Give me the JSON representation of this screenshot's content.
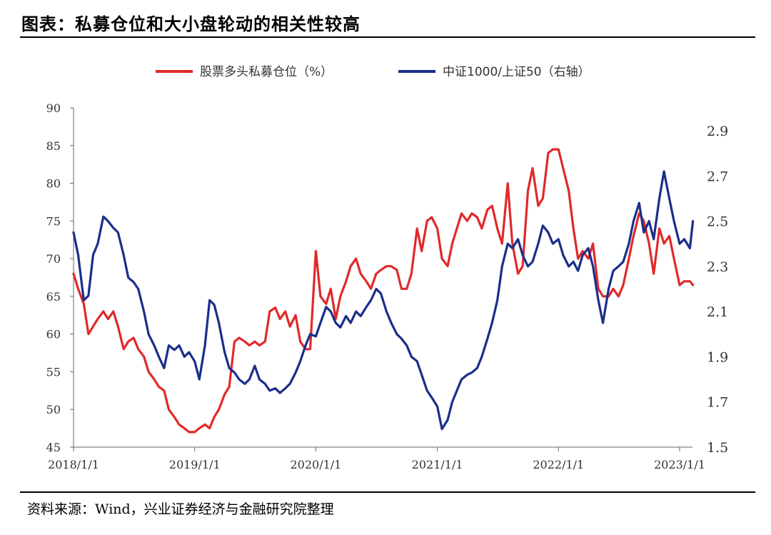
{
  "title": "图表：私募仓位和大小盘轮动的相关性较高",
  "source": "资料来源：Wind，兴业证券经济与金融研究院整理",
  "colors": {
    "red": "#e0292b",
    "blue": "#1a2e8a",
    "axis": "#666666"
  },
  "chart_data": {
    "type": "line",
    "legend_position": "top-center",
    "grid": false,
    "x_ticks": [
      "2018/1/1",
      "2019/1/1",
      "2020/1/1",
      "2021/1/1",
      "2022/1/1",
      "2023/1/1"
    ],
    "x_range": [
      "2018/1/1",
      "2023/2/10"
    ],
    "y_left": {
      "range": [
        45,
        90
      ],
      "ticks": [
        45,
        50,
        55,
        60,
        65,
        70,
        75,
        80,
        85,
        90
      ]
    },
    "y_right": {
      "range": [
        1.5,
        3.0
      ],
      "ticks": [
        1.5,
        1.7,
        1.9,
        2.1,
        2.3,
        2.5,
        2.7,
        2.9
      ]
    },
    "series": [
      {
        "name": "股票多头私募仓位（%）",
        "axis": "left",
        "color": "#e0292b",
        "points": [
          [
            "2018/1/1",
            68
          ],
          [
            "2018/1/15",
            66
          ],
          [
            "2018/2/1",
            64
          ],
          [
            "2018/2/15",
            60
          ],
          [
            "2018/3/1",
            61
          ],
          [
            "2018/3/15",
            62
          ],
          [
            "2018/4/1",
            63
          ],
          [
            "2018/4/15",
            62
          ],
          [
            "2018/5/1",
            63
          ],
          [
            "2018/5/15",
            61
          ],
          [
            "2018/6/1",
            58
          ],
          [
            "2018/6/15",
            59
          ],
          [
            "2018/7/1",
            59.5
          ],
          [
            "2018/7/15",
            58
          ],
          [
            "2018/8/1",
            57
          ],
          [
            "2018/8/15",
            55
          ],
          [
            "2018/9/1",
            54
          ],
          [
            "2018/9/15",
            53
          ],
          [
            "2018/10/1",
            52.5
          ],
          [
            "2018/10/15",
            50
          ],
          [
            "2018/11/1",
            49
          ],
          [
            "2018/11/15",
            48
          ],
          [
            "2018/12/1",
            47.5
          ],
          [
            "2018/12/15",
            47
          ],
          [
            "2019/1/1",
            47
          ],
          [
            "2019/1/15",
            47.5
          ],
          [
            "2019/2/1",
            48
          ],
          [
            "2019/2/15",
            47.5
          ],
          [
            "2019/3/1",
            49
          ],
          [
            "2019/3/15",
            50
          ],
          [
            "2019/4/1",
            52
          ],
          [
            "2019/4/15",
            53
          ],
          [
            "2019/5/1",
            59
          ],
          [
            "2019/5/15",
            59.5
          ],
          [
            "2019/6/1",
            59
          ],
          [
            "2019/6/15",
            58.5
          ],
          [
            "2019/7/1",
            59
          ],
          [
            "2019/7/15",
            58.5
          ],
          [
            "2019/8/1",
            59
          ],
          [
            "2019/8/15",
            63
          ],
          [
            "2019/9/1",
            63.5
          ],
          [
            "2019/9/15",
            62
          ],
          [
            "2019/10/1",
            63
          ],
          [
            "2019/10/15",
            61
          ],
          [
            "2019/11/1",
            62.5
          ],
          [
            "2019/11/15",
            59
          ],
          [
            "2019/12/1",
            58
          ],
          [
            "2019/12/15",
            58
          ],
          [
            "2020/1/1",
            71
          ],
          [
            "2020/1/15",
            65
          ],
          [
            "2020/2/1",
            64
          ],
          [
            "2020/2/15",
            66
          ],
          [
            "2020/3/1",
            62
          ],
          [
            "2020/3/15",
            65
          ],
          [
            "2020/4/1",
            67
          ],
          [
            "2020/4/15",
            69
          ],
          [
            "2020/5/1",
            70
          ],
          [
            "2020/5/15",
            68
          ],
          [
            "2020/6/1",
            67
          ],
          [
            "2020/6/15",
            66
          ],
          [
            "2020/7/1",
            68
          ],
          [
            "2020/7/15",
            68.5
          ],
          [
            "2020/8/1",
            69
          ],
          [
            "2020/8/15",
            69
          ],
          [
            "2020/9/1",
            68.5
          ],
          [
            "2020/9/15",
            66
          ],
          [
            "2020/10/1",
            66
          ],
          [
            "2020/10/15",
            68
          ],
          [
            "2020/11/1",
            74
          ],
          [
            "2020/11/15",
            71
          ],
          [
            "2020/12/1",
            75
          ],
          [
            "2020/12/15",
            75.5
          ],
          [
            "2021/1/1",
            74
          ],
          [
            "2021/1/15",
            70
          ],
          [
            "2021/2/1",
            69
          ],
          [
            "2021/2/15",
            72
          ],
          [
            "2021/3/1",
            74
          ],
          [
            "2021/3/15",
            76
          ],
          [
            "2021/4/1",
            75
          ],
          [
            "2021/4/15",
            76
          ],
          [
            "2021/5/1",
            75.5
          ],
          [
            "2021/5/15",
            74
          ],
          [
            "2021/6/1",
            76.5
          ],
          [
            "2021/6/15",
            77
          ],
          [
            "2021/7/1",
            74
          ],
          [
            "2021/7/15",
            72
          ],
          [
            "2021/8/1",
            80
          ],
          [
            "2021/8/15",
            72
          ],
          [
            "2021/9/1",
            68
          ],
          [
            "2021/9/15",
            69
          ],
          [
            "2021/10/1",
            79
          ],
          [
            "2021/10/15",
            82
          ],
          [
            "2021/11/1",
            77
          ],
          [
            "2021/11/15",
            78
          ],
          [
            "2021/12/1",
            84
          ],
          [
            "2021/12/15",
            84.5
          ],
          [
            "2022/1/1",
            84.5
          ],
          [
            "2022/1/15",
            82
          ],
          [
            "2022/2/1",
            79
          ],
          [
            "2022/2/15",
            74
          ],
          [
            "2022/3/1",
            70
          ],
          [
            "2022/3/15",
            71
          ],
          [
            "2022/4/1",
            70
          ],
          [
            "2022/4/15",
            72
          ],
          [
            "2022/5/1",
            66
          ],
          [
            "2022/5/15",
            65
          ],
          [
            "2022/6/1",
            65
          ],
          [
            "2022/6/15",
            66
          ],
          [
            "2022/7/1",
            65
          ],
          [
            "2022/7/15",
            66.5
          ],
          [
            "2022/8/1",
            70
          ],
          [
            "2022/8/15",
            73
          ],
          [
            "2022/9/1",
            76
          ],
          [
            "2022/9/15",
            75
          ],
          [
            "2022/10/1",
            72
          ],
          [
            "2022/10/15",
            68
          ],
          [
            "2022/11/1",
            74
          ],
          [
            "2022/11/15",
            72
          ],
          [
            "2022/12/1",
            73
          ],
          [
            "2022/12/15",
            70
          ],
          [
            "2023/1/1",
            66.5
          ],
          [
            "2023/1/15",
            67
          ],
          [
            "2023/2/1",
            67
          ],
          [
            "2023/2/10",
            66.5
          ]
        ]
      },
      {
        "name": "中证1000/上证50（右轴）",
        "axis": "right",
        "color": "#1a2e8a",
        "points": [
          [
            "2018/1/1",
            2.45
          ],
          [
            "2018/1/15",
            2.35
          ],
          [
            "2018/2/1",
            2.15
          ],
          [
            "2018/2/15",
            2.17
          ],
          [
            "2018/3/1",
            2.35
          ],
          [
            "2018/3/15",
            2.4
          ],
          [
            "2018/4/1",
            2.52
          ],
          [
            "2018/4/15",
            2.5
          ],
          [
            "2018/5/1",
            2.47
          ],
          [
            "2018/5/15",
            2.45
          ],
          [
            "2018/6/1",
            2.35
          ],
          [
            "2018/6/15",
            2.25
          ],
          [
            "2018/7/1",
            2.23
          ],
          [
            "2018/7/15",
            2.2
          ],
          [
            "2018/8/1",
            2.1
          ],
          [
            "2018/8/15",
            2.0
          ],
          [
            "2018/9/1",
            1.95
          ],
          [
            "2018/9/15",
            1.9
          ],
          [
            "2018/10/1",
            1.85
          ],
          [
            "2018/10/15",
            1.95
          ],
          [
            "2018/11/1",
            1.93
          ],
          [
            "2018/11/15",
            1.95
          ],
          [
            "2018/12/1",
            1.9
          ],
          [
            "2018/12/15",
            1.92
          ],
          [
            "2019/1/1",
            1.88
          ],
          [
            "2019/1/15",
            1.8
          ],
          [
            "2019/2/1",
            1.95
          ],
          [
            "2019/2/15",
            2.15
          ],
          [
            "2019/3/1",
            2.13
          ],
          [
            "2019/3/15",
            2.05
          ],
          [
            "2019/4/1",
            1.92
          ],
          [
            "2019/4/15",
            1.85
          ],
          [
            "2019/5/1",
            1.83
          ],
          [
            "2019/5/15",
            1.8
          ],
          [
            "2019/6/1",
            1.78
          ],
          [
            "2019/6/15",
            1.8
          ],
          [
            "2019/7/1",
            1.86
          ],
          [
            "2019/7/15",
            1.8
          ],
          [
            "2019/8/1",
            1.78
          ],
          [
            "2019/8/15",
            1.75
          ],
          [
            "2019/9/1",
            1.76
          ],
          [
            "2019/9/15",
            1.74
          ],
          [
            "2019/10/1",
            1.76
          ],
          [
            "2019/10/15",
            1.78
          ],
          [
            "2019/11/1",
            1.83
          ],
          [
            "2019/11/15",
            1.88
          ],
          [
            "2019/12/1",
            1.95
          ],
          [
            "2019/12/15",
            2.0
          ],
          [
            "2020/1/1",
            1.99
          ],
          [
            "2020/1/15",
            2.05
          ],
          [
            "2020/2/1",
            2.12
          ],
          [
            "2020/2/15",
            2.1
          ],
          [
            "2020/3/1",
            2.05
          ],
          [
            "2020/3/15",
            2.03
          ],
          [
            "2020/4/1",
            2.08
          ],
          [
            "2020/4/15",
            2.05
          ],
          [
            "2020/5/1",
            2.1
          ],
          [
            "2020/5/15",
            2.08
          ],
          [
            "2020/6/1",
            2.12
          ],
          [
            "2020/6/15",
            2.15
          ],
          [
            "2020/7/1",
            2.2
          ],
          [
            "2020/7/15",
            2.18
          ],
          [
            "2020/8/1",
            2.1
          ],
          [
            "2020/8/15",
            2.05
          ],
          [
            "2020/9/1",
            2.0
          ],
          [
            "2020/9/15",
            1.98
          ],
          [
            "2020/10/1",
            1.95
          ],
          [
            "2020/10/15",
            1.9
          ],
          [
            "2020/11/1",
            1.88
          ],
          [
            "2020/11/15",
            1.82
          ],
          [
            "2020/12/1",
            1.75
          ],
          [
            "2020/12/15",
            1.72
          ],
          [
            "2021/1/1",
            1.68
          ],
          [
            "2021/1/15",
            1.58
          ],
          [
            "2021/2/1",
            1.62
          ],
          [
            "2021/2/15",
            1.7
          ],
          [
            "2021/3/1",
            1.75
          ],
          [
            "2021/3/15",
            1.8
          ],
          [
            "2021/4/1",
            1.82
          ],
          [
            "2021/4/15",
            1.83
          ],
          [
            "2021/5/1",
            1.85
          ],
          [
            "2021/5/15",
            1.9
          ],
          [
            "2021/6/1",
            1.98
          ],
          [
            "2021/6/15",
            2.05
          ],
          [
            "2021/7/1",
            2.15
          ],
          [
            "2021/7/15",
            2.3
          ],
          [
            "2021/8/1",
            2.4
          ],
          [
            "2021/8/15",
            2.38
          ],
          [
            "2021/9/1",
            2.42
          ],
          [
            "2021/9/15",
            2.35
          ],
          [
            "2021/10/1",
            2.3
          ],
          [
            "2021/10/15",
            2.32
          ],
          [
            "2021/11/1",
            2.4
          ],
          [
            "2021/11/15",
            2.48
          ],
          [
            "2021/12/1",
            2.45
          ],
          [
            "2021/12/15",
            2.4
          ],
          [
            "2022/1/1",
            2.42
          ],
          [
            "2022/1/15",
            2.35
          ],
          [
            "2022/2/1",
            2.3
          ],
          [
            "2022/2/15",
            2.32
          ],
          [
            "2022/3/1",
            2.28
          ],
          [
            "2022/3/15",
            2.35
          ],
          [
            "2022/4/1",
            2.38
          ],
          [
            "2022/4/15",
            2.3
          ],
          [
            "2022/5/1",
            2.15
          ],
          [
            "2022/5/15",
            2.05
          ],
          [
            "2022/6/1",
            2.2
          ],
          [
            "2022/6/15",
            2.28
          ],
          [
            "2022/7/1",
            2.3
          ],
          [
            "2022/7/15",
            2.32
          ],
          [
            "2022/8/1",
            2.4
          ],
          [
            "2022/8/15",
            2.5
          ],
          [
            "2022/9/1",
            2.58
          ],
          [
            "2022/9/15",
            2.45
          ],
          [
            "2022/10/1",
            2.5
          ],
          [
            "2022/10/15",
            2.42
          ],
          [
            "2022/11/1",
            2.6
          ],
          [
            "2022/11/15",
            2.72
          ],
          [
            "2022/12/1",
            2.6
          ],
          [
            "2022/12/15",
            2.5
          ],
          [
            "2023/1/1",
            2.4
          ],
          [
            "2023/1/15",
            2.42
          ],
          [
            "2023/2/1",
            2.38
          ],
          [
            "2023/2/10",
            2.5
          ]
        ]
      }
    ]
  }
}
